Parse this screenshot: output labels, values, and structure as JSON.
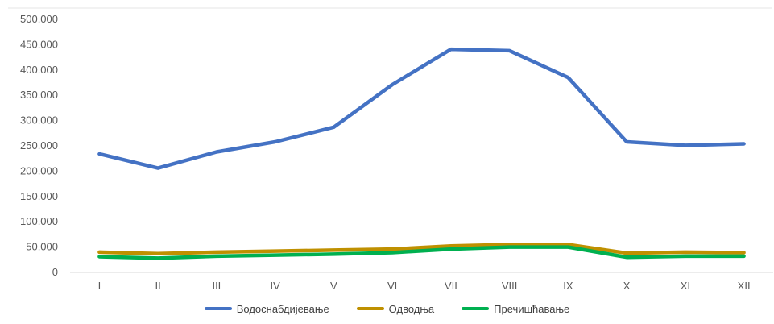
{
  "chart_data": {
    "type": "line",
    "categories": [
      "I",
      "II",
      "III",
      "IV",
      "V",
      "VI",
      "VII",
      "VIII",
      "IX",
      "X",
      "XI",
      "XII"
    ],
    "series": [
      {
        "name": "Водоснабдијевање",
        "color": "#4472C4",
        "values": [
          234000,
          206000,
          238000,
          258000,
          287000,
          371000,
          441000,
          438000,
          385000,
          258000,
          251000,
          254000
        ]
      },
      {
        "name": "Одводња",
        "color": "#BF9000",
        "values": [
          40000,
          37000,
          40000,
          42000,
          44000,
          46000,
          52000,
          55000,
          55000,
          38000,
          40000,
          39000
        ]
      },
      {
        "name": "Пречишћавање",
        "color": "#00B050",
        "values": [
          31000,
          28000,
          32000,
          34000,
          36000,
          39000,
          46000,
          50000,
          50000,
          30000,
          32000,
          32000
        ]
      }
    ],
    "yticks": [
      "0",
      "50.000",
      "100.000",
      "150.000",
      "200.000",
      "250.000",
      "300.000",
      "350.000",
      "400.000",
      "450.000",
      "500.000"
    ],
    "ylim": [
      0,
      500000
    ],
    "grid": false,
    "legend_position": "bottom"
  }
}
